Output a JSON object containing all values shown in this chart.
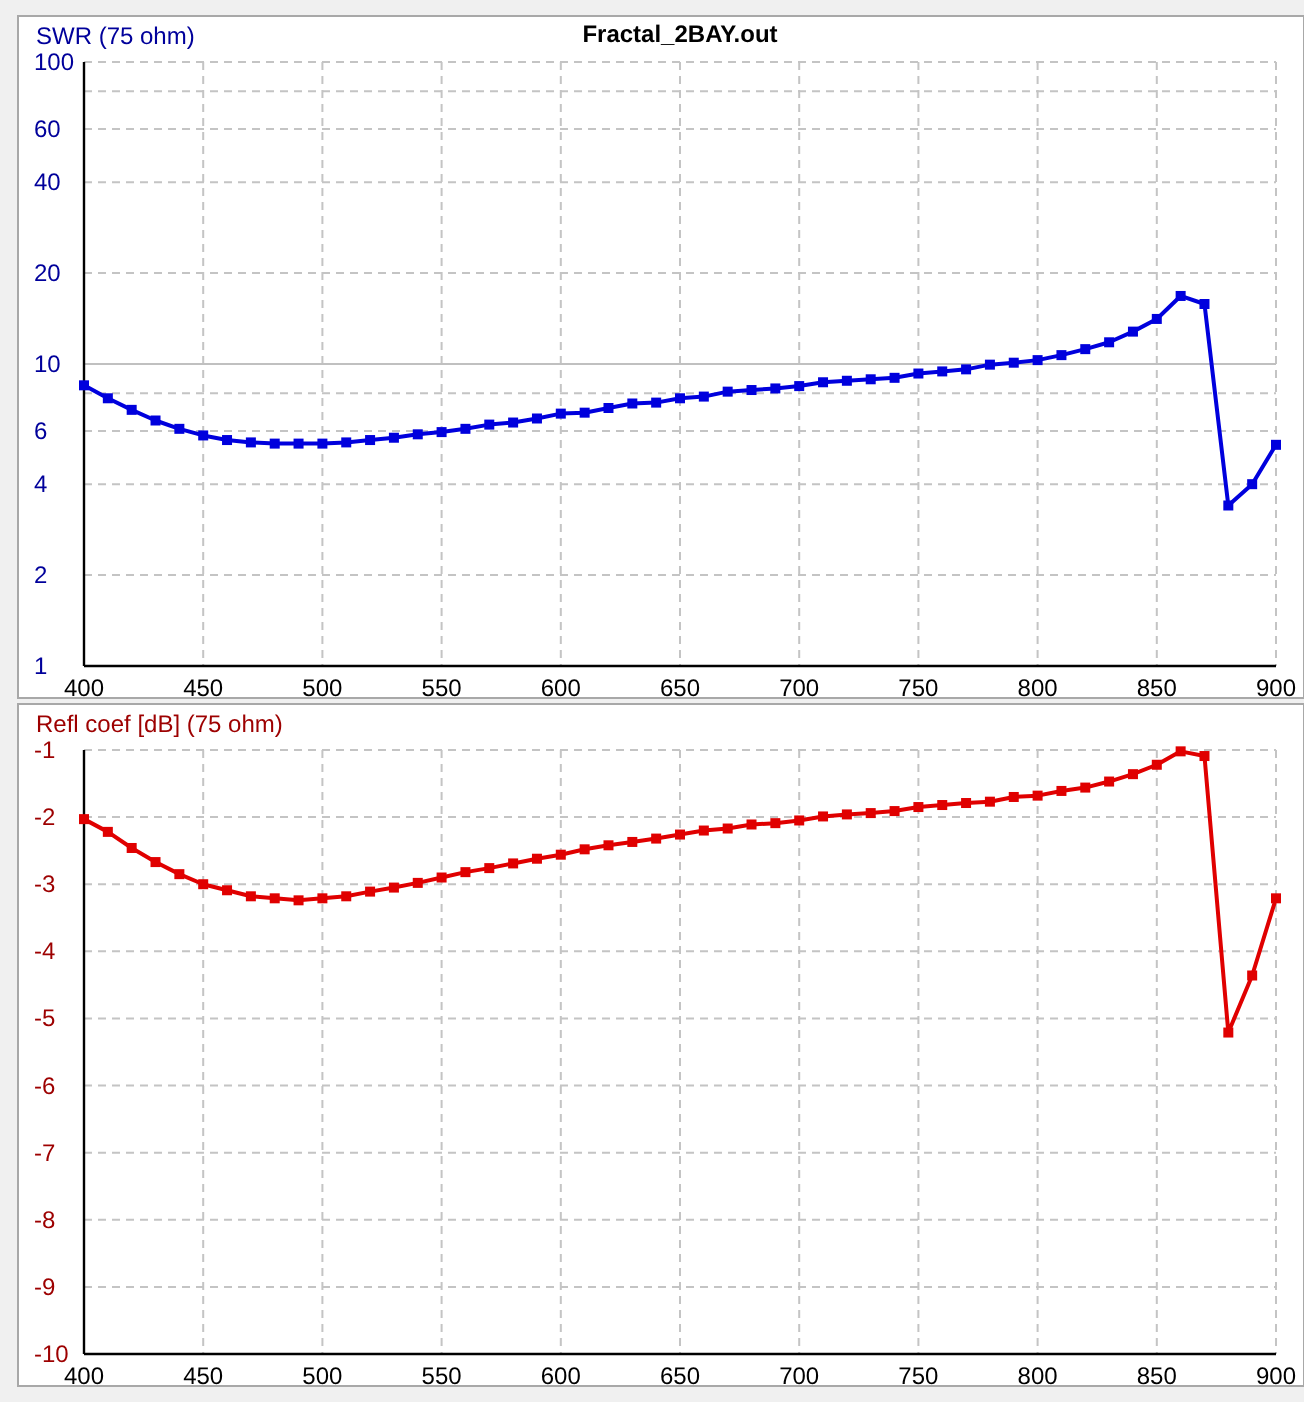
{
  "chart_data": [
    {
      "type": "line",
      "title": "Fractal_2BAY.out",
      "ylabel": "SWR (75 ohm)",
      "x": [
        400,
        410,
        420,
        430,
        440,
        450,
        460,
        470,
        480,
        490,
        500,
        510,
        520,
        530,
        540,
        550,
        560,
        570,
        580,
        590,
        600,
        610,
        620,
        630,
        640,
        650,
        660,
        670,
        680,
        690,
        700,
        710,
        720,
        730,
        740,
        750,
        760,
        770,
        780,
        790,
        800,
        810,
        820,
        830,
        840,
        850,
        860,
        870,
        880,
        890,
        900
      ],
      "series": [
        {
          "color": "#0000dd",
          "values": [
            8.5,
            7.7,
            7.05,
            6.5,
            6.1,
            5.8,
            5.6,
            5.5,
            5.45,
            5.45,
            5.45,
            5.5,
            5.6,
            5.7,
            5.85,
            5.95,
            6.1,
            6.3,
            6.4,
            6.6,
            6.85,
            6.9,
            7.15,
            7.4,
            7.45,
            7.7,
            7.8,
            8.1,
            8.2,
            8.3,
            8.45,
            8.7,
            8.8,
            8.9,
            9.0,
            9.3,
            9.45,
            9.6,
            9.95,
            10.1,
            10.3,
            10.7,
            11.2,
            11.8,
            12.8,
            14.1,
            16.8,
            15.8,
            3.4,
            4.0,
            5.4
          ]
        }
      ],
      "xlim": [
        400,
        900
      ],
      "xticks": [
        400,
        450,
        500,
        550,
        600,
        650,
        700,
        750,
        800,
        850,
        900
      ],
      "ylim": [
        1,
        100
      ],
      "yticks": [
        1,
        2,
        4,
        6,
        {
          "value": 8,
          "label": null
        },
        10,
        20,
        40,
        60,
        {
          "value": 80,
          "label": null
        },
        100
      ],
      "ref_lines": [
        {
          "axis": "y",
          "value": 10,
          "color": "#c0c0c0",
          "line_style": "solid"
        }
      ],
      "log": "y",
      "grid": true,
      "marker": "square",
      "line_style": "solid"
    },
    {
      "type": "line",
      "ylabel": "Refl coef [dB] (75 ohm)",
      "x": [
        400,
        410,
        420,
        430,
        440,
        450,
        460,
        470,
        480,
        490,
        500,
        510,
        520,
        530,
        540,
        550,
        560,
        570,
        580,
        590,
        600,
        610,
        620,
        630,
        640,
        650,
        660,
        670,
        680,
        690,
        700,
        710,
        720,
        730,
        740,
        750,
        760,
        770,
        780,
        790,
        800,
        810,
        820,
        830,
        840,
        850,
        860,
        870,
        880,
        890,
        900
      ],
      "series": [
        {
          "color": "#e00000",
          "values": [
            -2.03,
            -2.22,
            -2.46,
            -2.67,
            -2.85,
            -3.0,
            -3.09,
            -3.18,
            -3.21,
            -3.24,
            -3.21,
            -3.18,
            -3.11,
            -3.05,
            -2.98,
            -2.9,
            -2.82,
            -2.76,
            -2.69,
            -2.62,
            -2.56,
            -2.48,
            -2.42,
            -2.37,
            -2.32,
            -2.26,
            -2.2,
            -2.17,
            -2.11,
            -2.09,
            -2.05,
            -1.99,
            -1.96,
            -1.94,
            -1.91,
            -1.85,
            -1.82,
            -1.79,
            -1.77,
            -1.7,
            -1.68,
            -1.61,
            -1.56,
            -1.47,
            -1.36,
            -1.22,
            -1.02,
            -1.09,
            -5.21,
            -4.36,
            -3.21
          ]
        }
      ],
      "xlim": [
        400,
        900
      ],
      "xticks": [
        400,
        450,
        500,
        550,
        600,
        650,
        700,
        750,
        800,
        850,
        900
      ],
      "ylim": [
        -10,
        -1
      ],
      "yticks": [
        -10,
        -9,
        -8,
        -7,
        -6,
        -5,
        -4,
        -3,
        -2,
        -1
      ],
      "grid": true,
      "marker": "square",
      "line_style": "solid"
    }
  ]
}
